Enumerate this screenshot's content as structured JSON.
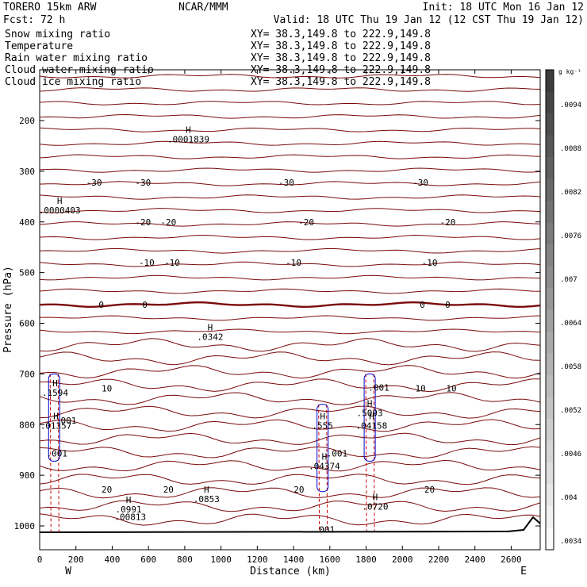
{
  "header": {
    "model": "TORERO  15km ARW",
    "center": "NCAR/MMM",
    "init": "Init: 18 UTC Mon 16 Jan 12",
    "fcst": "Fcst:   72 h",
    "valid": "Valid: 18 UTC Thu 19 Jan 12 (12 CST Thu 19 Jan 12)"
  },
  "legend": [
    {
      "name": "Snow mixing ratio",
      "xy": "XY=  38.3,149.8 to 222.9,149.8",
      "color": "#000000"
    },
    {
      "name": "Temperature",
      "xy": "XY=  38.3,149.8 to 222.9,149.8",
      "color": "#cc0000"
    },
    {
      "name": "Rain water mixing ratio",
      "xy": "XY=  38.3,149.8 to 222.9,149.8",
      "color": "#cc0000"
    },
    {
      "name": "Cloud water mixing ratio",
      "xy": "XY=  38.3,149.8 to 222.9,149.8",
      "color": "#0000cc"
    },
    {
      "name": "Cloud ice mixing ratio",
      "xy": "XY=  38.3,149.8 to 222.9,149.8",
      "color": "#000000"
    }
  ],
  "colorbar": {
    "unit": "g kg⁻¹",
    "labels": [
      ".0094",
      ".0088",
      ".0082",
      ".0076",
      ".007",
      ".0064",
      ".0058",
      ".0052",
      ".0046",
      ".004",
      ".0034"
    ]
  },
  "chart_data": {
    "type": "line",
    "title": "",
    "xlabel": "Distance (km)",
    "ylabel": "Pressure (hPa)",
    "xlim": [
      0,
      2760
    ],
    "ylim": [
      1020,
      100
    ],
    "xticks": [
      0,
      200,
      400,
      600,
      800,
      1000,
      1200,
      1400,
      1600,
      1800,
      2000,
      2200,
      2400,
      2600
    ],
    "yticks": [
      200,
      300,
      400,
      500,
      600,
      700,
      800,
      900,
      1000
    ],
    "x_end_labels": {
      "left": "W",
      "right": "E"
    },
    "isotherm_spacing_c": 2,
    "isotherms": [
      {
        "label": "-30",
        "p": 322,
        "label_x": [
          300,
          570,
          1360,
          2100
        ]
      },
      {
        "label": "-20",
        "p": 400,
        "label_x": [
          570,
          710,
          1470,
          2250
        ]
      },
      {
        "label": "-10",
        "p": 480,
        "label_x": [
          590,
          730,
          1400,
          2150
        ]
      },
      {
        "label": "0",
        "p": 563,
        "label_x": [
          340,
          580,
          2110,
          2250
        ]
      },
      {
        "label": "10",
        "p": 728,
        "label_x": [
          370,
          2100,
          2270
        ]
      },
      {
        "label": "20",
        "p": 928,
        "label_x": [
          370,
          710,
          1430,
          2150
        ]
      }
    ],
    "extrema": [
      {
        "label": "H",
        "value": ".0001839",
        "x": 820,
        "p": 240,
        "field": "Snow mixing ratio"
      },
      {
        "label": "H",
        "value": ".0000403",
        "x": 110,
        "p": 380,
        "field": "Snow mixing ratio"
      },
      {
        "label": "H",
        "value": ".0342",
        "x": 940,
        "p": 630,
        "field": "Cloud water mixing ratio"
      },
      {
        "label": "H",
        "value": ".1594",
        "x": 85,
        "p": 740,
        "field": "Cloud water mixing ratio"
      },
      {
        "label": "",
        "value": ".001",
        "x": 145,
        "p": 795,
        "field": "Cloud water mixing ratio"
      },
      {
        "label": "H",
        "value": ".01357",
        "x": 90,
        "p": 805,
        "field": "Rain water mixing ratio"
      },
      {
        "label": "",
        "value": ".001",
        "x": 95,
        "p": 860,
        "field": "Rain water mixing ratio"
      },
      {
        "label": "H",
        "value": ".555",
        "x": 1560,
        "p": 805,
        "field": "Cloud water mixing ratio"
      },
      {
        "label": "",
        "value": ".001",
        "x": 1640,
        "p": 860,
        "field": "Cloud water mixing ratio"
      },
      {
        "label": "H",
        "value": ".04374",
        "x": 1570,
        "p": 885,
        "field": "Rain water mixing ratio"
      },
      {
        "label": "H",
        "value": ".5093",
        "x": 1820,
        "p": 780,
        "field": "Cloud water mixing ratio"
      },
      {
        "label": "",
        "value": ".001",
        "x": 1870,
        "p": 730,
        "field": "Cloud water mixing ratio"
      },
      {
        "label": "H",
        "value": ".04158",
        "x": 1830,
        "p": 805,
        "field": "Rain water mixing ratio"
      },
      {
        "label": "H",
        "value": ".0991",
        "x": 490,
        "p": 970,
        "field": "Cloud water mixing ratio"
      },
      {
        "label": "",
        "value": ".00813",
        "x": 500,
        "p": 985,
        "field": "Rain water mixing ratio"
      },
      {
        "label": "H",
        "value": ".0853",
        "x": 920,
        "p": 950,
        "field": "Cloud water mixing ratio"
      },
      {
        "label": "H",
        "value": ".0720",
        "x": 1850,
        "p": 965,
        "field": "Cloud water mixing ratio"
      },
      {
        "label": "",
        "value": ".001",
        "x": 1570,
        "p": 1010,
        "field": "Rain water mixing ratio"
      }
    ]
  }
}
